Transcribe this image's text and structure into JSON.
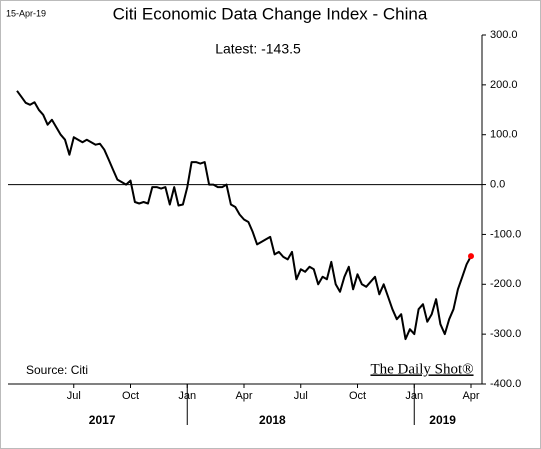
{
  "chart_data": {
    "type": "line",
    "title": "Citi Economic Data Change Index - China",
    "date": "15-Apr-19",
    "annotation": "Latest:  -143.5",
    "source": "Source: Citi",
    "brand": "The Daily Shot®",
    "xlim": [
      "2017-04",
      "2019-04"
    ],
    "xticks": [
      {
        "value": "2017-07",
        "label": "Jul"
      },
      {
        "value": "2017-10",
        "label": "Oct"
      },
      {
        "value": "2018-01",
        "label": "Jan"
      },
      {
        "value": "2018-04",
        "label": "Apr"
      },
      {
        "value": "2018-07",
        "label": "Jul"
      },
      {
        "value": "2018-10",
        "label": "Oct"
      },
      {
        "value": "2019-01",
        "label": "Jan"
      },
      {
        "value": "2019-04",
        "label": "Apr"
      }
    ],
    "years": [
      "2017",
      "2018",
      "2019"
    ],
    "ylim": [
      -400,
      300
    ],
    "yticks": [
      {
        "value": -400,
        "label": "-400.0"
      },
      {
        "value": -300,
        "label": "-300.0"
      },
      {
        "value": -200,
        "label": "-200.0"
      },
      {
        "value": -100,
        "label": "-100.0"
      },
      {
        "value": 0,
        "label": "0.0"
      },
      {
        "value": 100,
        "label": "100.0"
      },
      {
        "value": 200,
        "label": "200.0"
      },
      {
        "value": 300,
        "label": "300.0"
      }
    ],
    "zero_line": true,
    "series": [
      {
        "name": "China",
        "color": "#000000",
        "highlight_color": "#ff0000",
        "values": [
          188,
          176,
          164,
          160,
          165,
          150,
          140,
          120,
          130,
          115,
          100,
          90,
          60,
          95,
          90,
          85,
          90,
          85,
          80,
          82,
          70,
          50,
          30,
          10,
          5,
          0,
          8,
          -35,
          -38,
          -35,
          -38,
          -5,
          -5,
          -8,
          -5,
          -40,
          -5,
          -42,
          -40,
          -5,
          45,
          45,
          42,
          45,
          0,
          0,
          -5,
          -5,
          0,
          -40,
          -45,
          -60,
          -70,
          -75,
          -95,
          -120,
          -115,
          -110,
          -105,
          -140,
          -135,
          -145,
          -150,
          -135,
          -190,
          -170,
          -175,
          -165,
          -170,
          -200,
          -185,
          -190,
          -155,
          -200,
          -215,
          -185,
          -165,
          -210,
          -180,
          -200,
          -205,
          -195,
          -185,
          -220,
          -200,
          -225,
          -250,
          -270,
          -260,
          -310,
          -290,
          -300,
          -250,
          -240,
          -275,
          -260,
          -230,
          -280,
          -300,
          -270,
          -250,
          -210,
          -185,
          -160,
          -143.5
        ]
      }
    ]
  }
}
